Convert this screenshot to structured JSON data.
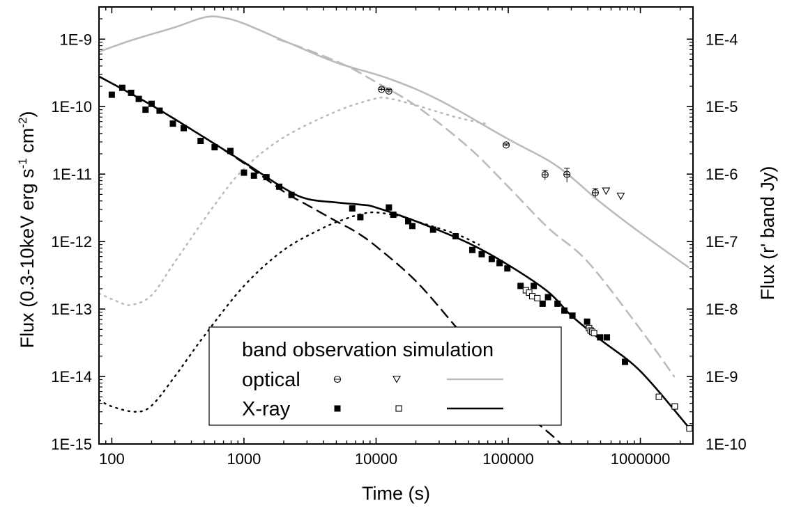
{
  "chart_data": {
    "type": "scatter",
    "x_scale": "log",
    "y_scale": "log",
    "xlim": [
      80,
      2500000
    ],
    "ylim_left": [
      1e-15,
      3e-09
    ],
    "ylim_right": [
      1e-10,
      0.0003
    ],
    "grid": false,
    "legend_placement": "bottom-center",
    "xlabel": "Time (s)",
    "ylabel": "Flux (0.3-10keV erg s-1 cm-2)",
    "ylabel_main": "Flux (0.3-10keV erg s",
    "ylabel_sup1": "-1",
    "ylabel_mid": " cm",
    "ylabel_sup2": "-2",
    "ylabel_end": ")",
    "y2label": "Flux (r' band Jy)",
    "x_ticks": [
      100,
      1000,
      10000,
      100000,
      1000000
    ],
    "x_tick_labels": [
      "100",
      "1000",
      "10000",
      "100000",
      "1000000"
    ],
    "y_ticks": [
      1e-15,
      1e-14,
      1e-13,
      1e-12,
      1e-11,
      1e-10,
      1e-09
    ],
    "y_tick_labels": [
      "1E-15",
      "1E-14",
      "1E-13",
      "1E-12",
      "1E-11",
      "1E-10",
      "1E-9"
    ],
    "y2_ticks": [
      1e-10,
      1e-09,
      1e-08,
      1e-07,
      1e-06,
      1e-05,
      0.0001
    ],
    "y2_tick_labels": [
      "1E-10",
      "1E-9",
      "1E-8",
      "1E-7",
      "1E-6",
      "1E-5",
      "1E-4"
    ],
    "legend": {
      "header": [
        "band",
        "observation",
        "simulation"
      ],
      "rows": [
        {
          "label": "optical",
          "marker1": "circle-bar",
          "marker2": "triangle-down",
          "line_color": "#bbbbbb"
        },
        {
          "label": "X-ray",
          "marker1": "square-filled",
          "marker2": "square-open",
          "line_color": "#000000"
        }
      ]
    },
    "series": [
      {
        "name": "X-ray",
        "style": "square-filled",
        "x": [
          100,
          120,
          140,
          160,
          180,
          200,
          230,
          290,
          350,
          470,
          600,
          790,
          1000,
          1190,
          1480,
          1850,
          2290,
          6600,
          7600,
          12500,
          13500,
          17500,
          18800,
          27000,
          40000,
          53500,
          63000,
          75000,
          86000,
          98500,
          124000,
          156000,
          182000,
          200000,
          236000,
          266000,
          306000,
          395000,
          496000,
          558000,
          765000
        ],
        "y": [
          1.5e-10,
          1.9e-10,
          1.6e-10,
          1.3e-10,
          9e-11,
          1.1e-10,
          8.7e-11,
          5.6e-11,
          4.8e-11,
          3.1e-11,
          2.5e-11,
          2.2e-11,
          1.05e-11,
          9.5e-12,
          9e-12,
          6.5e-12,
          4.9e-12,
          3.1e-12,
          2.3e-12,
          3.2e-12,
          2.5e-12,
          2e-12,
          1.7e-12,
          1.5e-12,
          1.2e-12,
          7.5e-13,
          6.5e-13,
          5.5e-13,
          4.8e-13,
          4e-13,
          2.2e-13,
          2.2e-13,
          1.2e-13,
          1.5e-13,
          1.2e-13,
          9.5e-14,
          8e-14,
          6.5e-14,
          3.8e-14,
          3.8e-14,
          1.65e-14
        ]
      },
      {
        "name": "X-ray",
        "style": "square-open",
        "x": [
          136000,
          144000,
          152000,
          166000,
          409000,
          420000,
          432000,
          446000,
          1380000,
          1820000,
          2350000
        ],
        "y": [
          1.9e-13,
          1.75e-13,
          1.55e-13,
          1.45e-13,
          5.2e-14,
          4.8e-14,
          4.6e-14,
          4.4e-14,
          5e-15,
          3.6e-15,
          1.7e-15
        ]
      },
      {
        "name": "optical",
        "style": "circle-bar",
        "axis": "right",
        "x": [
          11000,
          12500,
          96500,
          190000,
          278000,
          456000
        ],
        "y": [
          1.8e-05,
          1.7e-05,
          2.7e-06,
          9.8e-07,
          9.9e-07,
          5.3e-07
        ],
        "err_up": [
          1e-06,
          1e-06,
          1e-07,
          1.6e-07,
          2.3e-07,
          8e-08
        ],
        "err_down": [
          1e-06,
          1e-06,
          1e-07,
          1.6e-07,
          2.3e-07,
          8e-08
        ]
      },
      {
        "name": "optical",
        "style": "triangle-down",
        "axis": "right",
        "x": [
          550000,
          710000
        ],
        "y": [
          5.6e-07,
          4.7e-07
        ]
      },
      {
        "name": "optical",
        "style": "line-solid-gray",
        "axis": "right",
        "x": [
          80,
          140,
          300,
          500,
          680,
          1000,
          2000,
          5000,
          12500,
          30000,
          100000,
          200000,
          300000,
          500000,
          1000000,
          2300000
        ],
        "y": [
          6.5e-05,
          9.6e-05,
          0.00015,
          0.00021,
          0.00021,
          0.00017,
          9.5e-05,
          4.5e-05,
          2.6e-05,
          1.25e-05,
          3.3e-06,
          1.6e-06,
          9e-07,
          3.8e-07,
          1.35e-07,
          4.2e-08
        ]
      },
      {
        "name": "",
        "style": "line-dash-gray",
        "axis": "right",
        "x": [
          1800,
          3000,
          6000,
          10000,
          20000,
          50000,
          100000,
          200000,
          400000,
          1000000,
          1800000
        ],
        "y": [
          0.0001,
          7e-05,
          4e-05,
          2.3e-05,
          1.03e-05,
          2.5e-06,
          6.5e-07,
          1.6e-07,
          5e-08,
          5e-09,
          1e-09
        ]
      },
      {
        "name": "",
        "style": "line-dot-gray",
        "axis": "right",
        "x": [
          80,
          110,
          140,
          200,
          300,
          600,
          1000,
          2000,
          5000,
          10000,
          13000,
          20000,
          40000,
          70000
        ],
        "y": [
          1.7e-08,
          1.3e-08,
          1.15e-08,
          1.6e-08,
          5e-08,
          3.5e-07,
          1.2e-06,
          3.5e-06,
          8.5e-06,
          1.32e-05,
          1.3e-05,
          1.05e-05,
          7e-06,
          5.5e-06
        ]
      },
      {
        "name": "X-ray",
        "style": "line-solid-black",
        "x": [
          80,
          200,
          500,
          1000,
          2000,
          3000,
          5000,
          8000,
          10000,
          20000,
          50000,
          100000,
          200000,
          300000,
          500000,
          1000000,
          2300000
        ],
        "y": [
          2.8e-10,
          1.05e-10,
          3.5e-11,
          1.5e-11,
          6.2e-12,
          4.3e-12,
          3.8e-12,
          3.5e-12,
          3.2e-12,
          2e-12,
          9.5e-13,
          4.5e-13,
          1.8e-13,
          8e-14,
          3.5e-14,
          1.2e-14,
          1.8e-15
        ]
      },
      {
        "name": "",
        "style": "line-dash-black",
        "x": [
          80,
          200,
          500,
          1000,
          2000,
          3000,
          5000,
          7000,
          10000,
          20000,
          40000,
          80000,
          150000,
          250000,
          500000,
          750000
        ],
        "y": [
          2.8e-10,
          1.05e-10,
          3.5e-11,
          1.45e-11,
          5.5e-12,
          3.5e-12,
          2e-12,
          1.4e-12,
          8.5e-13,
          2.6e-13,
          5.5e-14,
          1.1e-14,
          2.5e-15,
          1e-15,
          2e-16,
          1e-16
        ]
      },
      {
        "name": "",
        "style": "line-dot-black",
        "x": [
          80,
          100,
          150,
          200,
          300,
          500,
          1000,
          2000,
          4000,
          6000,
          8000,
          10000,
          15000,
          20000,
          40000,
          60000
        ],
        "y": [
          4.5e-15,
          3.6e-15,
          3e-15,
          3.7e-15,
          1e-14,
          4e-14,
          2.2e-13,
          7.5e-13,
          1.6e-12,
          2.2e-12,
          2.6e-12,
          2.7e-12,
          2.4e-12,
          2e-12,
          1.3e-12,
          9e-13
        ]
      }
    ]
  }
}
